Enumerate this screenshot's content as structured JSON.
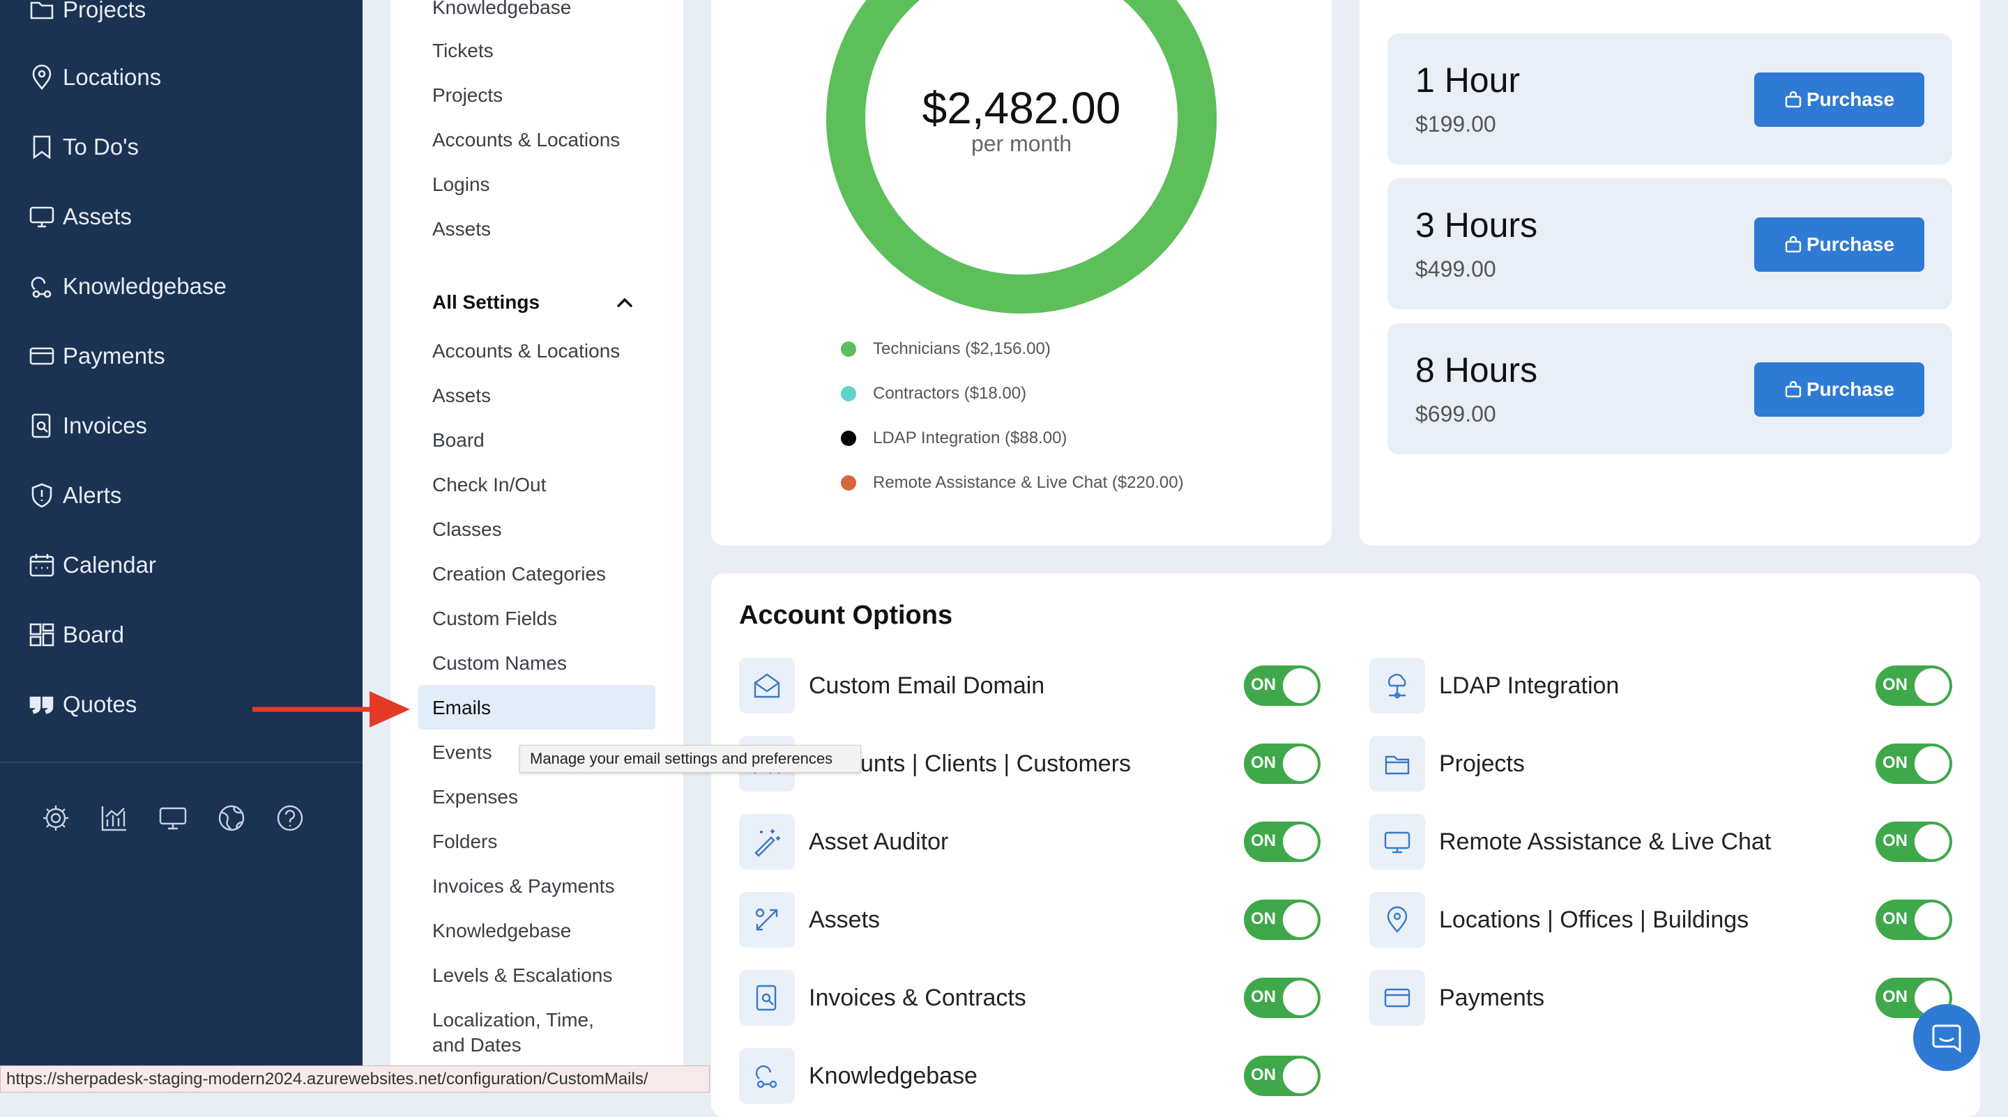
{
  "nav": {
    "items": [
      {
        "label": "Projects",
        "icon": "folder-icon"
      },
      {
        "label": "Locations",
        "icon": "map-pin-icon"
      },
      {
        "label": "To Do's",
        "icon": "bookmark-icon"
      },
      {
        "label": "Assets",
        "icon": "monitor-icon"
      },
      {
        "label": "Knowledgebase",
        "icon": "knowledgebase-icon"
      },
      {
        "label": "Payments",
        "icon": "credit-card-icon"
      },
      {
        "label": "Invoices",
        "icon": "invoice-icon"
      },
      {
        "label": "Alerts",
        "icon": "shield-alert-icon"
      },
      {
        "label": "Calendar",
        "icon": "calendar-icon"
      },
      {
        "label": "Board",
        "icon": "board-icon"
      },
      {
        "label": "Quotes",
        "icon": "quote-icon"
      }
    ],
    "tools": [
      "gear-icon",
      "chart-icon",
      "monitor-icon",
      "globe-icon",
      "help-icon"
    ]
  },
  "menu": {
    "top_items": [
      "Knowledgebase",
      "Tickets",
      "Projects",
      "Accounts & Locations",
      "Logins",
      "Assets"
    ],
    "section_title": "All Settings",
    "settings_items": [
      "Accounts & Locations",
      "Assets",
      "Board",
      "Check In/Out",
      "Classes",
      "Creation Categories",
      "Custom Fields",
      "Custom Names",
      "Emails",
      "Events",
      "Expenses",
      "Folders",
      "Invoices & Payments",
      "Knowledgebase",
      "Levels & Escalations",
      "Localization, Time,",
      "and Dates"
    ],
    "active_item": "Emails",
    "tooltip": "Manage your email settings and preferences"
  },
  "billing": {
    "total": "$2,482.00",
    "period": "per month",
    "colors": {
      "technicians": "#5cbf5a",
      "contractors": "#5fd3c6",
      "ldap": "#000000",
      "remote": "#d9653b"
    }
  },
  "chart_data": {
    "type": "pie",
    "categories": [
      "Technicians",
      "Contractors",
      "LDAP Integration",
      "Remote Assistance & Live Chat"
    ],
    "values": [
      2156,
      18,
      88,
      220
    ],
    "legend": [
      "Technicians ($2,156.00)",
      "Contractors ($18.00)",
      "LDAP Integration ($88.00)",
      "Remote Assistance & Live Chat ($220.00)"
    ],
    "colors": [
      "#5cbf5a",
      "#5fd3c6",
      "#000000",
      "#d9653b"
    ]
  },
  "hours": [
    {
      "title": "1 Hour",
      "price": "$199.00",
      "button": "Purchase"
    },
    {
      "title": "3 Hours",
      "price": "$499.00",
      "button": "Purchase"
    },
    {
      "title": "8 Hours",
      "price": "$699.00",
      "button": "Purchase"
    }
  ],
  "options": {
    "title": "Account Options",
    "toggle_label": "ON",
    "left": [
      {
        "label": "Custom Email Domain",
        "icon": "envelope-open-icon"
      },
      {
        "label": "unts | Clients | Customers",
        "icon": "users-icon"
      },
      {
        "label": "Asset Auditor",
        "icon": "magic-wand-icon"
      },
      {
        "label": "Assets",
        "icon": "percent-tag-icon"
      },
      {
        "label": "Invoices & Contracts",
        "icon": "invoice-icon"
      },
      {
        "label": "Knowledgebase",
        "icon": "knowledgebase-icon"
      }
    ],
    "right": [
      {
        "label": "LDAP Integration",
        "icon": "network-icon"
      },
      {
        "label": "Projects",
        "icon": "folder-icon"
      },
      {
        "label": "Remote Assistance & Live Chat",
        "icon": "monitor-icon"
      },
      {
        "label": "Locations | Offices | Buildings",
        "icon": "map-pin-icon"
      },
      {
        "label": "Payments",
        "icon": "credit-card-icon"
      }
    ]
  },
  "status_url": "https://sherpadesk-staging-modern2024.azurewebsites.net/configuration/CustomMails/"
}
